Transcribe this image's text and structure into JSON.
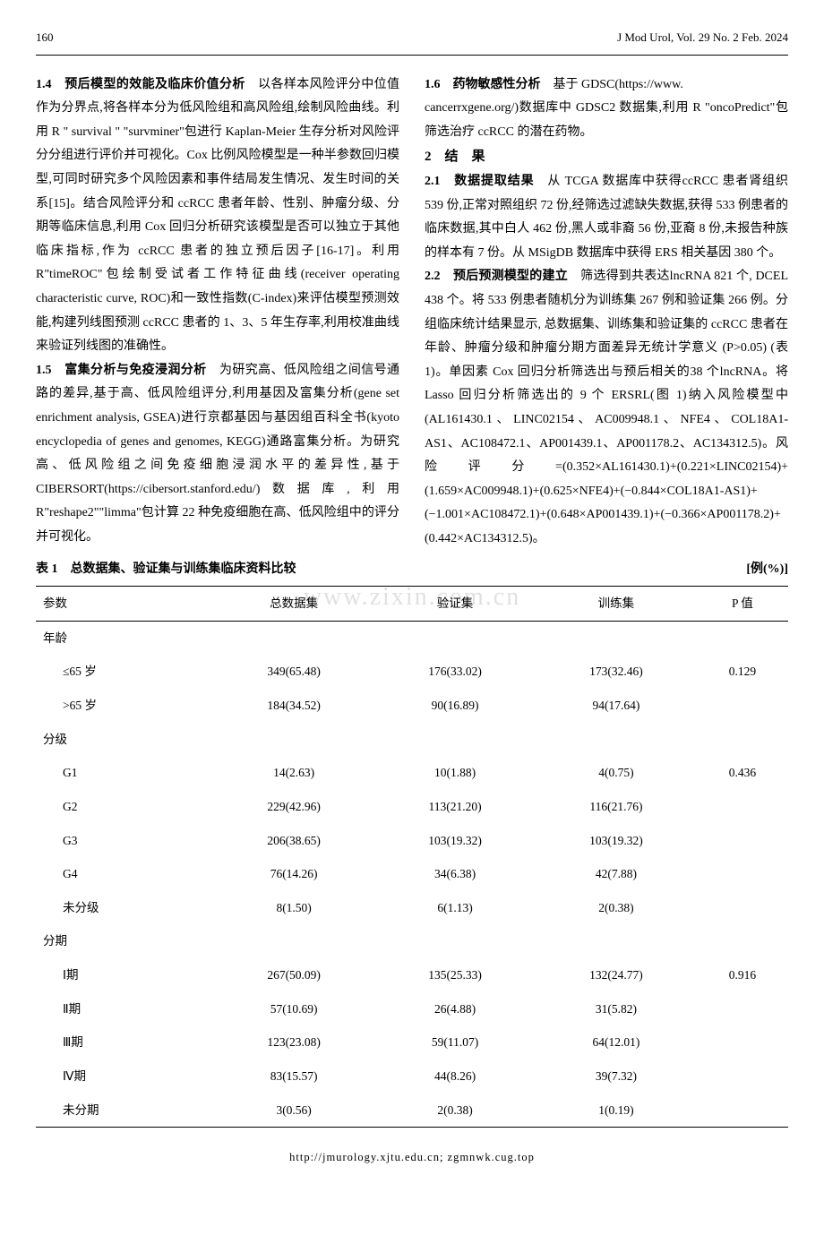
{
  "header": {
    "page_number": "160",
    "journal": "J Mod Urol, Vol. 29 No. 2 Feb. 2024"
  },
  "watermark": "www.zixin.com.cn",
  "left_column": {
    "s14_head": "1.4　预后模型的效能及临床价值分析",
    "s14_body": "　以各样本风险评分中位值作为分界点,将各样本分为低风险组和高风险组,绘制风险曲线。利用 R \" survival \" \"survminer\"包进行 Kaplan-Meier 生存分析对风险评分分组进行评价并可视化。Cox 比例风险模型是一种半参数回归模型,可同时研究多个风险因素和事件结局发生情况、发生时间的关系[15]。结合风险评分和 ccRCC 患者年龄、性别、肿瘤分级、分期等临床信息,利用 Cox 回归分析研究该模型是否可以独立于其他临床指标,作为 ccRCC 患者的独立预后因子[16-17]。利用 R\"timeROC\"包绘制受试者工作特征曲线(receiver operating characteristic curve, ROC)和一致性指数(C-index)来评估模型预测效能,构建列线图预测 ccRCC 患者的 1、3、5 年生存率,利用校准曲线来验证列线图的准确性。",
    "s15_head": "1.5　富集分析与免疫浸润分析",
    "s15_body": "　为研究高、低风险组之间信号通路的差异,基于高、低风险组评分,利用基因及富集分析(gene set enrichment analysis, GSEA)进行京都基因与基因组百科全书(kyoto encyclopedia of genes and genomes, KEGG)通路富集分析。为研究高、低风险组之间免疫细胞浸润水平的差异性,基于 CIBERSORT(https://cibersort.stanford.edu/)数据库,利用 R\"reshape2\"\"limma\"包计算 22 种免疫细胞在高、低风险组中的评分并可视化。",
    "s16_head": "1.6　药物敏感性分析",
    "s16_body": "　基于 GDSC(https://www."
  },
  "right_column": {
    "cont": "cancerrxgene.org/)数据库中 GDSC2 数据集,利用 R \"oncoPredict\"包筛选治疗 ccRCC 的潜在药物。",
    "s2_head": "2　结　果",
    "s21_head": "2.1　数据提取结果",
    "s21_body": "　从 TCGA 数据库中获得ccRCC 患者肾组织 539 份,正常对照组织 72 份,经筛选过滤缺失数据,获得 533 例患者的临床数据,其中白人 462 份,黑人或非裔 56 份,亚裔 8 份,未报告种族的样本有 7 份。从 MSigDB 数据库中获得 ERS 相关基因 380 个。",
    "s22_head": "2.2　预后预测模型的建立",
    "s22_body": "　筛选得到共表达lncRNA 821 个, DCEL 438 个。将 533 例患者随机分为训练集 267 例和验证集 266 例。分组临床统计结果显示, 总数据集、训练集和验证集的 ccRCC 患者在年龄、肿瘤分级和肿瘤分期方面差异无统计学意义 (P>0.05) (表 1)。单因素 Cox 回归分析筛选出与预后相关的38 个lncRNA。将 Lasso 回归分析筛选出的 9 个 ERSRL(图 1)纳入风险模型中(AL161430.1、LINC02154、AC009948.1、NFE4、COL18A1-AS1、AC108472.1、AP001439.1、AP001178.2、AC134312.5)。风险评分=(0.352×AL161430.1)+(0.221×LINC02154)+(1.659×AC009948.1)+(0.625×NFE4)+(−0.844×COL18A1-AS1)+(−1.001×AC108472.1)+(0.648×AP001439.1)+(−0.366×AP001178.2)+(0.442×AC134312.5)。"
  },
  "table": {
    "caption": "表 1　总数据集、验证集与训练集临床资料比较",
    "unit": "[例(%)]",
    "columns": [
      "参数",
      "总数据集",
      "验证集",
      "训练集",
      "P 值"
    ],
    "groups": [
      {
        "name": "年龄",
        "pvalue": "0.129",
        "rows": [
          {
            "label": "≤65 岁",
            "c1": "349(65.48)",
            "c2": "176(33.02)",
            "c3": "173(32.46)"
          },
          {
            "label": ">65 岁",
            "c1": "184(34.52)",
            "c2": "90(16.89)",
            "c3": "94(17.64)"
          }
        ]
      },
      {
        "name": "分级",
        "pvalue": "0.436",
        "rows": [
          {
            "label": "G1",
            "c1": "14(2.63)",
            "c2": "10(1.88)",
            "c3": "4(0.75)"
          },
          {
            "label": "G2",
            "c1": "229(42.96)",
            "c2": "113(21.20)",
            "c3": "116(21.76)"
          },
          {
            "label": "G3",
            "c1": "206(38.65)",
            "c2": "103(19.32)",
            "c3": "103(19.32)"
          },
          {
            "label": "G4",
            "c1": "76(14.26)",
            "c2": "34(6.38)",
            "c3": "42(7.88)"
          },
          {
            "label": "未分级",
            "c1": "8(1.50)",
            "c2": "6(1.13)",
            "c3": "2(0.38)"
          }
        ]
      },
      {
        "name": "分期",
        "pvalue": "0.916",
        "rows": [
          {
            "label": "Ⅰ期",
            "c1": "267(50.09)",
            "c2": "135(25.33)",
            "c3": "132(24.77)"
          },
          {
            "label": "Ⅱ期",
            "c1": "57(10.69)",
            "c2": "26(4.88)",
            "c3": "31(5.82)"
          },
          {
            "label": "Ⅲ期",
            "c1": "123(23.08)",
            "c2": "59(11.07)",
            "c3": "64(12.01)"
          },
          {
            "label": "Ⅳ期",
            "c1": "83(15.57)",
            "c2": "44(8.26)",
            "c3": "39(7.32)"
          },
          {
            "label": "未分期",
            "c1": "3(0.56)",
            "c2": "2(0.38)",
            "c3": "1(0.19)"
          }
        ]
      }
    ]
  },
  "footer": "http://jmurology.xjtu.edu.cn;  zgmnwk.cug.top"
}
